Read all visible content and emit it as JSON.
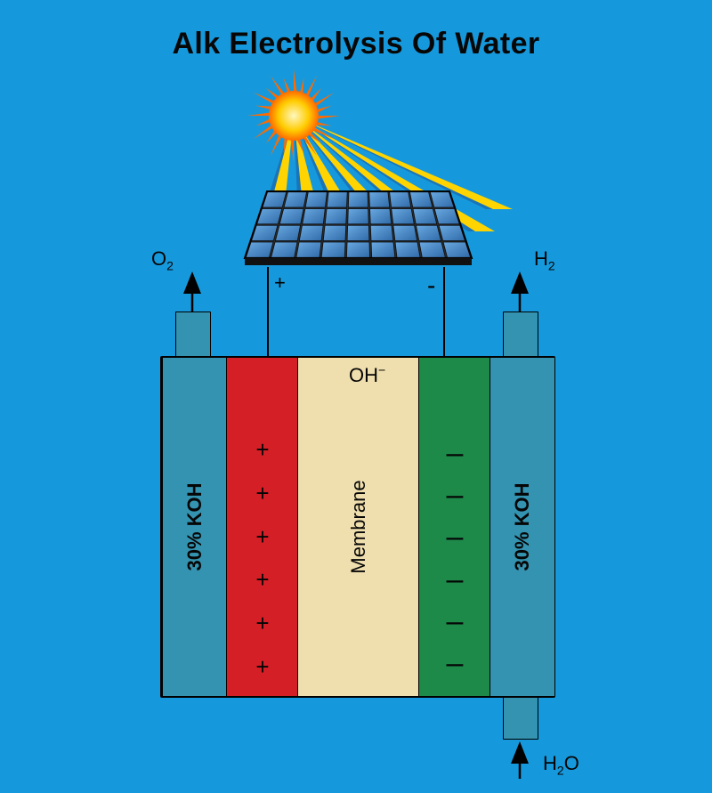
{
  "title": "Alk Electrolysis Of Water",
  "colors": {
    "background": "#1699dc",
    "koh": "#3493b0",
    "anode": "#d41f26",
    "membrane": "#f0dfae",
    "cathode": "#1d8a4a",
    "sun_core": "#ff6a00",
    "sun_glow": "#ffcc00",
    "ray": "#ffd400",
    "ray_blue": "#1a6fb4",
    "panel_frame": "#2b2b2b",
    "panel_cell": "#2f6aa8",
    "panel_highlight": "#6aa9e1",
    "outline": "#000000",
    "text": "#060606"
  },
  "layers": {
    "koh_left": {
      "label": "30% KOH"
    },
    "anode": {
      "symbol": "+",
      "count": 6
    },
    "membrane": {
      "label": "Membrane"
    },
    "cathode": {
      "symbol": "–",
      "count": 6
    },
    "koh_right": {
      "label": "30% KOH"
    }
  },
  "ion": {
    "label_html": "OH<sup>−</sup>"
  },
  "wires": {
    "plus": "+",
    "minus": "-"
  },
  "outputs": {
    "o2": {
      "label_html": "O<sub>2</sub>"
    },
    "h2": {
      "label_html": "H<sub>2</sub>"
    },
    "h2o": {
      "label_html": "H<sub>2</sub>O"
    }
  },
  "solar_panel": {
    "rows": 4,
    "cols": 9
  },
  "sun": {
    "rays": 24
  }
}
